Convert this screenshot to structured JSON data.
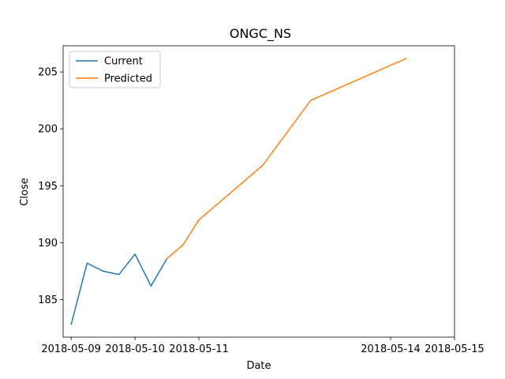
{
  "chart_data": {
    "type": "line",
    "title": "ONGC_NS",
    "xlabel": "Date",
    "ylabel": "Close",
    "xlim": [
      "2018-05-08T21:00",
      "2018-05-15T00:00"
    ],
    "ylim": [
      181.7,
      207.3
    ],
    "x_ticks": [
      "2018-05-09",
      "2018-05-10",
      "2018-05-11",
      "2018-05-14",
      "2018-05-15"
    ],
    "y_ticks": [
      185,
      190,
      195,
      200,
      205
    ],
    "grid": false,
    "legend_position": "upper-left",
    "series": [
      {
        "name": "Current",
        "color": "#1f77b4",
        "x": [
          "2018-05-09",
          "2018-05-09T06:00",
          "2018-05-09T12:00",
          "2018-05-09T18:00",
          "2018-05-10",
          "2018-05-10T06:00",
          "2018-05-10T12:00"
        ],
        "y": [
          182.8,
          188.2,
          187.5,
          187.2,
          189.0,
          186.2,
          188.6
        ]
      },
      {
        "name": "Predicted",
        "color": "#ff7f0e",
        "x": [
          "2018-05-10T12:00",
          "2018-05-10T18:00",
          "2018-05-11",
          "2018-05-12",
          "2018-05-12T18:00",
          "2018-05-14T06:00"
        ],
        "y": [
          188.6,
          189.8,
          192.0,
          196.8,
          202.5,
          206.2
        ]
      }
    ]
  }
}
